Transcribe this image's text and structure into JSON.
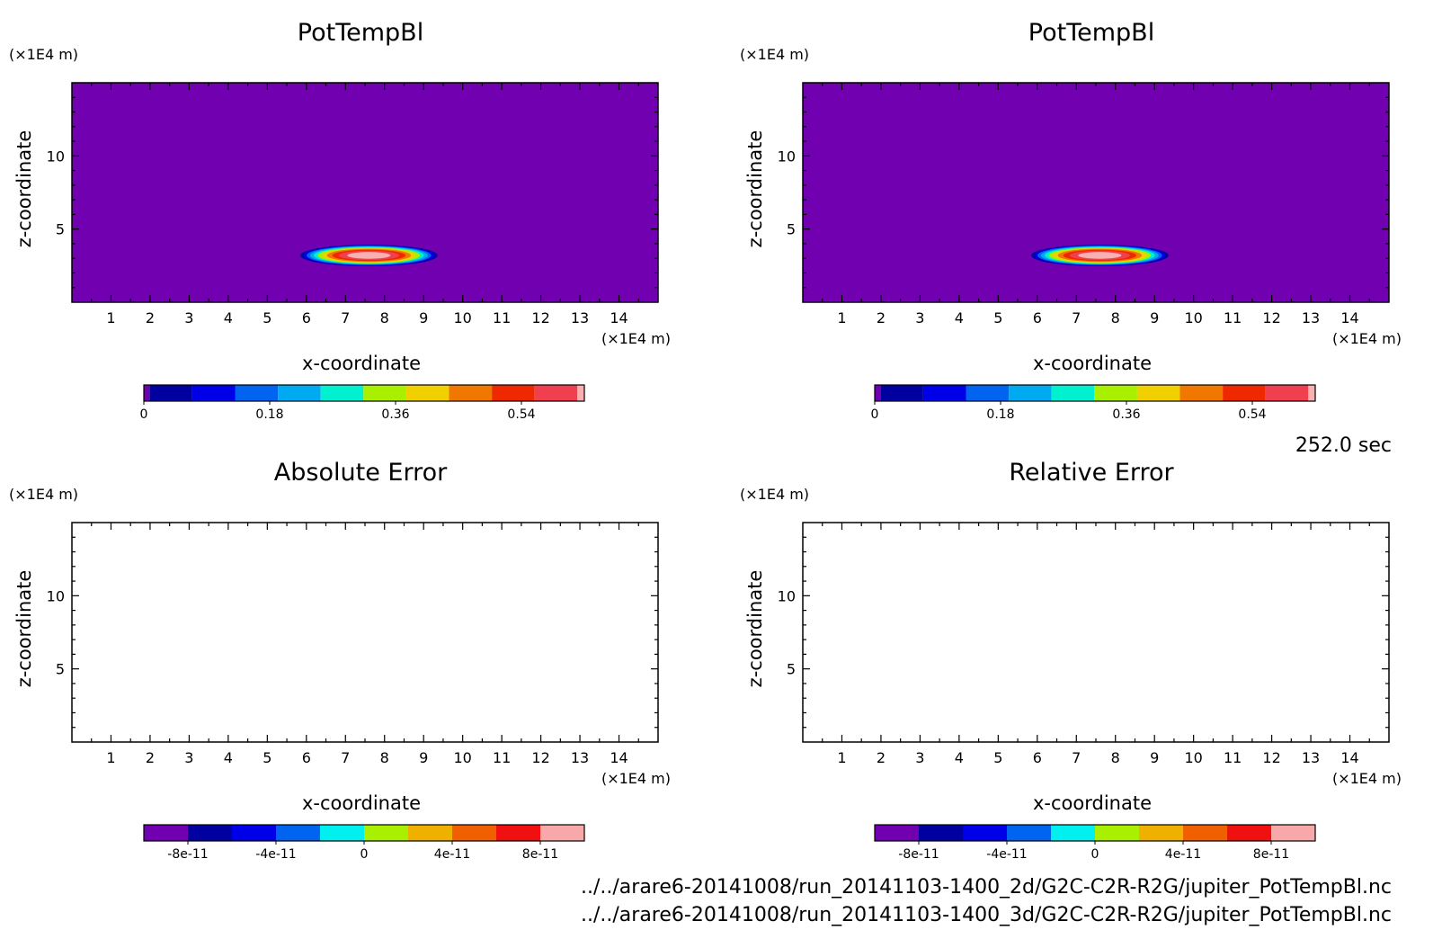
{
  "time_label": "252.0 sec",
  "footer": {
    "file_1": "../../arare6-20141008/run_20141103-1400_2d/G2C-C2R-R2G/jupiter_PotTempBl.nc",
    "file_2": "../../arare6-20141008/run_20141103-1400_3d/G2C-C2R-R2G/jupiter_PotTempBl.nc"
  },
  "colors": {
    "field_levels": [
      "#7000b0",
      "#0000a0",
      "#0000e8",
      "#0064f0",
      "#00aaf0",
      "#00f0d0",
      "#a8f000",
      "#f0d000",
      "#f07800",
      "#f02800",
      "#f04050",
      "#f8b0b0"
    ],
    "error_levels": [
      "#7000b0",
      "#0000a0",
      "#0000e8",
      "#0064f0",
      "#00f0f0",
      "#a8f000",
      "#f0b000",
      "#f06000",
      "#f01010",
      "#f8a8a8"
    ]
  },
  "chart_data": [
    {
      "type": "heatmap",
      "title": "PotTempBl",
      "xlabel": "x-coordinate",
      "ylabel": "z-coordinate",
      "x_unit": "(×1E4 m)",
      "y_unit": "(×1E4 m)",
      "xlim": [
        0,
        15
      ],
      "ylim": [
        0,
        15
      ],
      "x_ticks": [
        1,
        2,
        3,
        4,
        5,
        6,
        7,
        8,
        9,
        10,
        11,
        12,
        13,
        14
      ],
      "y_ticks": [
        5,
        10
      ],
      "field": {
        "background": 0.03,
        "bubble_center": [
          7.6,
          3.2
        ],
        "bubble_peak": 0.6,
        "bubble_radius_x": 1.8,
        "bubble_radius_z": 0.75
      },
      "colorbar": {
        "min": 0,
        "max": 0.63,
        "tick_values": [
          0,
          0.18,
          0.36,
          0.54
        ],
        "tick_labels": [
          "0",
          "0.18",
          "0.36",
          "0.54"
        ]
      }
    },
    {
      "type": "heatmap",
      "title": "PotTempBl",
      "xlabel": "x-coordinate",
      "ylabel": "z-coordinate",
      "x_unit": "(×1E4 m)",
      "y_unit": "(×1E4 m)",
      "xlim": [
        0,
        15
      ],
      "ylim": [
        0,
        15
      ],
      "x_ticks": [
        1,
        2,
        3,
        4,
        5,
        6,
        7,
        8,
        9,
        10,
        11,
        12,
        13,
        14
      ],
      "y_ticks": [
        5,
        10
      ],
      "field": {
        "background": 0.03,
        "bubble_center": [
          7.6,
          3.2
        ],
        "bubble_peak": 0.6,
        "bubble_radius_x": 1.8,
        "bubble_radius_z": 0.75
      },
      "colorbar": {
        "min": 0,
        "max": 0.63,
        "tick_values": [
          0,
          0.18,
          0.36,
          0.54
        ],
        "tick_labels": [
          "0",
          "0.18",
          "0.36",
          "0.54"
        ]
      }
    },
    {
      "type": "heatmap",
      "title": "Absolute Error",
      "xlabel": "x-coordinate",
      "ylabel": "z-coordinate",
      "x_unit": "(×1E4 m)",
      "y_unit": "(×1E4 m)",
      "xlim": [
        0,
        15
      ],
      "ylim": [
        0,
        15
      ],
      "x_ticks": [
        1,
        2,
        3,
        4,
        5,
        6,
        7,
        8,
        9,
        10,
        11,
        12,
        13,
        14
      ],
      "y_ticks": [
        5,
        10
      ],
      "field": null,
      "colorbar": {
        "min": -1e-10,
        "max": 1e-10,
        "tick_values": [
          -8e-11,
          -4e-11,
          0,
          4e-11,
          8e-11
        ],
        "tick_labels": [
          "-8e-11",
          "-4e-11",
          "0",
          "4e-11",
          "8e-11"
        ]
      }
    },
    {
      "type": "heatmap",
      "title": "Relative Error",
      "xlabel": "x-coordinate",
      "ylabel": "z-coordinate",
      "x_unit": "(×1E4 m)",
      "y_unit": "(×1E4 m)",
      "xlim": [
        0,
        15
      ],
      "ylim": [
        0,
        15
      ],
      "x_ticks": [
        1,
        2,
        3,
        4,
        5,
        6,
        7,
        8,
        9,
        10,
        11,
        12,
        13,
        14
      ],
      "y_ticks": [
        5,
        10
      ],
      "field": null,
      "colorbar": {
        "min": -1e-10,
        "max": 1e-10,
        "tick_values": [
          -8e-11,
          -4e-11,
          0,
          4e-11,
          8e-11
        ],
        "tick_labels": [
          "-8e-11",
          "-4e-11",
          "0",
          "4e-11",
          "8e-11"
        ]
      }
    }
  ]
}
